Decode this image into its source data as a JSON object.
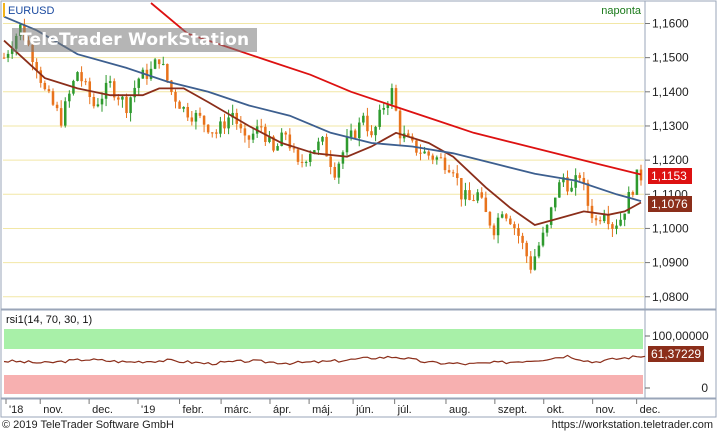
{
  "watermark": "TeleTrader WorkStation",
  "footer": {
    "copyright": "© 2019 TeleTrader Software GmbH",
    "url": "https://workstation.teletrader.com"
  },
  "colors": {
    "up": "#2e9a2e",
    "down": "#e8731c",
    "ma_short": "#8b2e1a",
    "ma_mid": "#3d5f8f",
    "ma_long": "#dd1111",
    "rsi_line": "#8b2e1a",
    "overbought_zone": "#a8f0a8",
    "oversold_zone": "#f7b0b0",
    "last_price_bg": "#dd1111",
    "ma_label_bg": "#8b2e1a"
  },
  "chart_data": [
    {
      "type": "candlestick",
      "symbol": "EURUSD",
      "period_label": "naponta",
      "y_axis": {
        "ticks": [
          "1,1600",
          "1,1500",
          "1,1400",
          "1,1300",
          "1,1200",
          "1,1100",
          "1,1000",
          "1,0900",
          "1,0800"
        ],
        "ylim": [
          1.077,
          1.166
        ]
      },
      "x_axis": {
        "ticks": [
          "'18",
          "nov.",
          "dec.",
          "'19",
          "febr.",
          "márc.",
          "ápr.",
          "máj.",
          "jún.",
          "júl.",
          "aug.",
          "szept.",
          "okt.",
          "nov.",
          "dec."
        ]
      },
      "price_path": [
        {
          "t": 0,
          "v": 1.15
        },
        {
          "t": 4,
          "v": 1.159
        },
        {
          "t": 8,
          "v": 1.148
        },
        {
          "t": 10,
          "v": 1.14
        },
        {
          "t": 14,
          "v": 1.132
        },
        {
          "t": 18,
          "v": 1.146
        },
        {
          "t": 22,
          "v": 1.136
        },
        {
          "t": 26,
          "v": 1.142
        },
        {
          "t": 30,
          "v": 1.136
        },
        {
          "t": 33,
          "v": 1.144
        },
        {
          "t": 36,
          "v": 1.146
        },
        {
          "t": 38,
          "v": 1.15
        },
        {
          "t": 41,
          "v": 1.14
        },
        {
          "t": 44,
          "v": 1.135
        },
        {
          "t": 48,
          "v": 1.132
        },
        {
          "t": 52,
          "v": 1.128
        },
        {
          "t": 56,
          "v": 1.134
        },
        {
          "t": 59,
          "v": 1.125
        },
        {
          "t": 63,
          "v": 1.13
        },
        {
          "t": 66,
          "v": 1.122
        },
        {
          "t": 69,
          "v": 1.128
        },
        {
          "t": 72,
          "v": 1.118
        },
        {
          "t": 75,
          "v": 1.123
        },
        {
          "t": 78,
          "v": 1.125
        },
        {
          "t": 81,
          "v": 1.117
        },
        {
          "t": 84,
          "v": 1.125
        },
        {
          "t": 87,
          "v": 1.13
        },
        {
          "t": 88,
          "v": 1.134
        },
        {
          "t": 90,
          "v": 1.126
        },
        {
          "t": 93,
          "v": 1.136
        },
        {
          "t": 95,
          "v": 1.14
        },
        {
          "t": 97,
          "v": 1.128
        },
        {
          "t": 100,
          "v": 1.124
        },
        {
          "t": 103,
          "v": 1.122
        },
        {
          "t": 105,
          "v": 1.121
        },
        {
          "t": 107,
          "v": 1.12
        },
        {
          "t": 110,
          "v": 1.118
        },
        {
          "t": 112,
          "v": 1.11
        },
        {
          "t": 114,
          "v": 1.108
        },
        {
          "t": 116,
          "v": 1.11
        },
        {
          "t": 118,
          "v": 1.104
        },
        {
          "t": 120,
          "v": 1.1
        },
        {
          "t": 122,
          "v": 1.106
        },
        {
          "t": 124,
          "v": 1.103
        },
        {
          "t": 126,
          "v": 1.098
        },
        {
          "t": 128,
          "v": 1.092
        },
        {
          "t": 129,
          "v": 1.089
        },
        {
          "t": 131,
          "v": 1.095
        },
        {
          "t": 133,
          "v": 1.1
        },
        {
          "t": 135,
          "v": 1.11
        },
        {
          "t": 137,
          "v": 1.115
        },
        {
          "t": 139,
          "v": 1.111
        },
        {
          "t": 141,
          "v": 1.116
        },
        {
          "t": 143,
          "v": 1.107
        },
        {
          "t": 145,
          "v": 1.102
        },
        {
          "t": 147,
          "v": 1.106
        },
        {
          "t": 149,
          "v": 1.101
        },
        {
          "t": 151,
          "v": 1.103
        },
        {
          "t": 153,
          "v": 1.109
        },
        {
          "t": 155,
          "v": 1.115
        },
        {
          "t": 156,
          "v": 1.1153
        }
      ],
      "series": [
        {
          "name": "",
          "role": "ma_short",
          "points": [
            {
              "t": 0,
              "v": 1.155
            },
            {
              "t": 10,
              "v": 1.144
            },
            {
              "t": 18,
              "v": 1.141
            },
            {
              "t": 26,
              "v": 1.139
            },
            {
              "t": 34,
              "v": 1.139
            },
            {
              "t": 38,
              "v": 1.141
            },
            {
              "t": 44,
              "v": 1.141
            },
            {
              "t": 50,
              "v": 1.137
            },
            {
              "t": 60,
              "v": 1.13
            },
            {
              "t": 68,
              "v": 1.125
            },
            {
              "t": 76,
              "v": 1.122
            },
            {
              "t": 84,
              "v": 1.121
            },
            {
              "t": 90,
              "v": 1.124
            },
            {
              "t": 96,
              "v": 1.128
            },
            {
              "t": 104,
              "v": 1.125
            },
            {
              "t": 110,
              "v": 1.121
            },
            {
              "t": 118,
              "v": 1.112
            },
            {
              "t": 124,
              "v": 1.106
            },
            {
              "t": 130,
              "v": 1.101
            },
            {
              "t": 136,
              "v": 1.103
            },
            {
              "t": 142,
              "v": 1.105
            },
            {
              "t": 148,
              "v": 1.104
            },
            {
              "t": 152,
              "v": 1.105
            },
            {
              "t": 156,
              "v": 1.1076
            }
          ]
        },
        {
          "name": "",
          "role": "ma_mid",
          "points": [
            {
              "t": 0,
              "v": 1.162
            },
            {
              "t": 8,
              "v": 1.158
            },
            {
              "t": 18,
              "v": 1.151
            },
            {
              "t": 30,
              "v": 1.147
            },
            {
              "t": 40,
              "v": 1.143
            },
            {
              "t": 50,
              "v": 1.14
            },
            {
              "t": 60,
              "v": 1.136
            },
            {
              "t": 70,
              "v": 1.133
            },
            {
              "t": 80,
              "v": 1.128
            },
            {
              "t": 90,
              "v": 1.125
            },
            {
              "t": 100,
              "v": 1.124
            },
            {
              "t": 110,
              "v": 1.122
            },
            {
              "t": 120,
              "v": 1.119
            },
            {
              "t": 130,
              "v": 1.116
            },
            {
              "t": 140,
              "v": 1.114
            },
            {
              "t": 150,
              "v": 1.11
            },
            {
              "t": 156,
              "v": 1.108
            }
          ]
        },
        {
          "name": "",
          "role": "ma_long",
          "points": [
            {
              "t": 36,
              "v": 1.166
            },
            {
              "t": 45,
              "v": 1.157
            },
            {
              "t": 55,
              "v": 1.153
            },
            {
              "t": 65,
              "v": 1.149
            },
            {
              "t": 75,
              "v": 1.145
            },
            {
              "t": 85,
              "v": 1.14
            },
            {
              "t": 95,
              "v": 1.136
            },
            {
              "t": 105,
              "v": 1.132
            },
            {
              "t": 115,
              "v": 1.128
            },
            {
              "t": 125,
              "v": 1.125
            },
            {
              "t": 135,
              "v": 1.122
            },
            {
              "t": 145,
              "v": 1.119
            },
            {
              "t": 156,
              "v": 1.1158
            }
          ]
        }
      ],
      "last_price": "1,1153",
      "ma_value": "1,1076"
    },
    {
      "type": "line",
      "title": "rsi1(14, 70, 30, 1)",
      "ylim": [
        0,
        100
      ],
      "y_axis": {
        "ticks": [
          "100,00000",
          "0"
        ]
      },
      "overbought": 70,
      "oversold": 30,
      "current_value": "61,37229",
      "values_approx": [
        {
          "t": 0,
          "v": 52
        },
        {
          "t": 10,
          "v": 48
        },
        {
          "t": 20,
          "v": 55
        },
        {
          "t": 30,
          "v": 50
        },
        {
          "t": 40,
          "v": 53
        },
        {
          "t": 50,
          "v": 47
        },
        {
          "t": 60,
          "v": 52
        },
        {
          "t": 70,
          "v": 48
        },
        {
          "t": 80,
          "v": 51
        },
        {
          "t": 90,
          "v": 58
        },
        {
          "t": 96,
          "v": 60
        },
        {
          "t": 104,
          "v": 49
        },
        {
          "t": 114,
          "v": 46
        },
        {
          "t": 124,
          "v": 50
        },
        {
          "t": 132,
          "v": 55
        },
        {
          "t": 138,
          "v": 62
        },
        {
          "t": 144,
          "v": 50
        },
        {
          "t": 150,
          "v": 56
        },
        {
          "t": 156,
          "v": 61.4
        }
      ]
    }
  ]
}
